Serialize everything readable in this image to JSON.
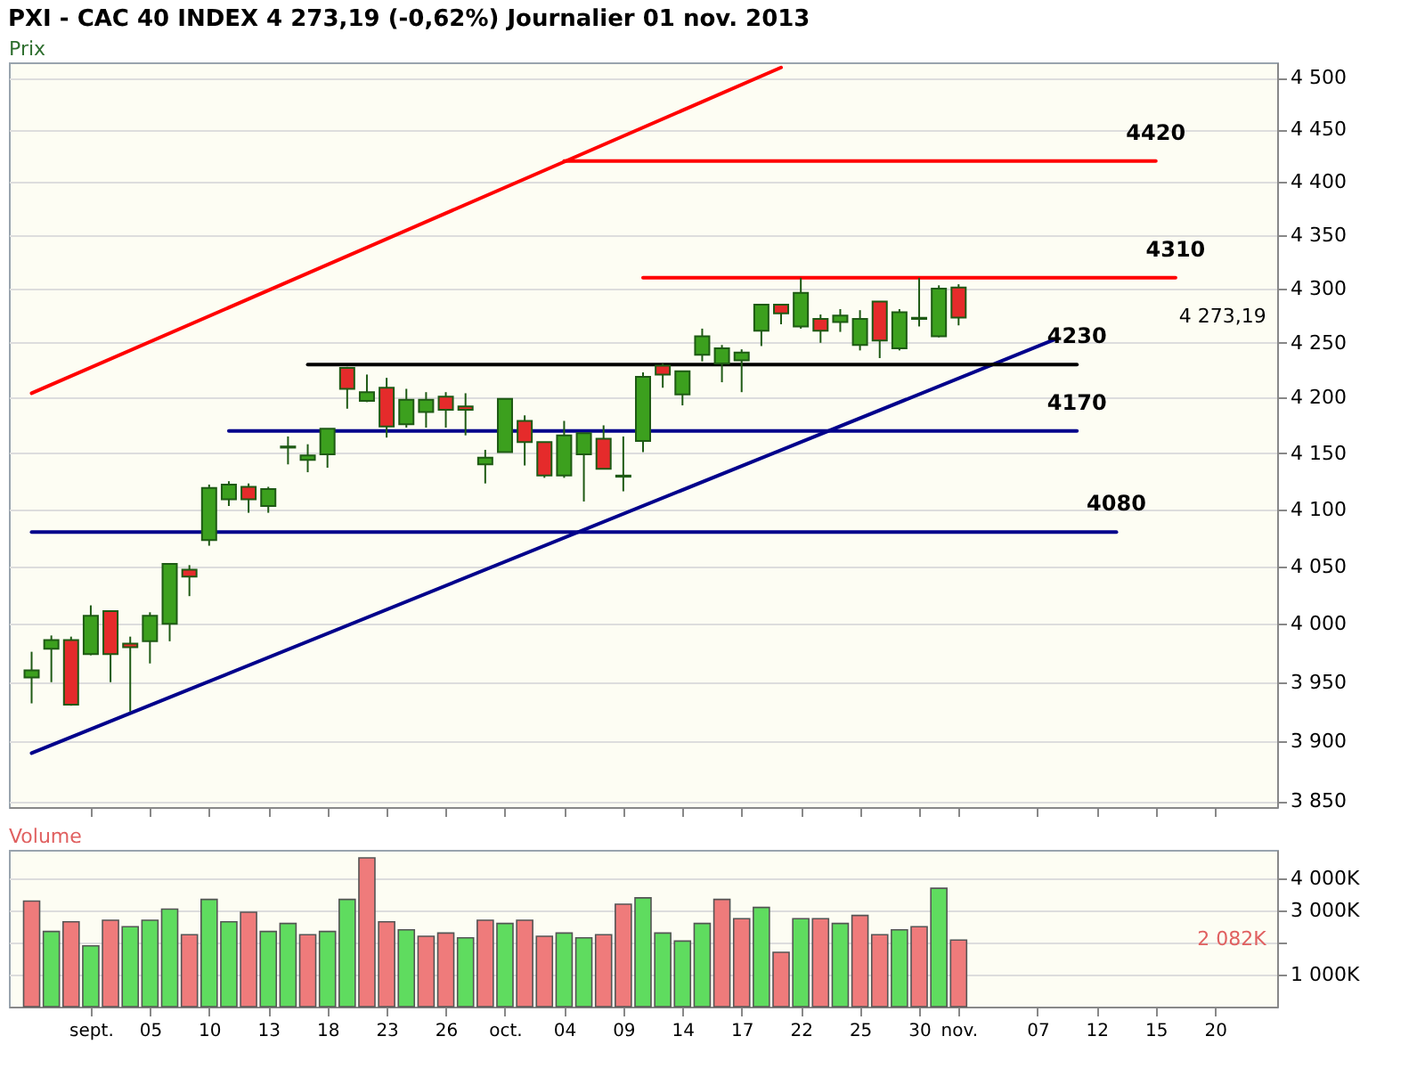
{
  "chart_data": [
    {
      "type": "candlestick",
      "title": "PXI - CAC 40 INDEX 4 273,19 (-0,62%) Journalier 01 nov. 2013",
      "ylabel": "Prix",
      "categories": [
        null,
        null,
        null,
        "sept.",
        null,
        null,
        "05",
        null,
        null,
        "10",
        null,
        null,
        "13",
        null,
        null,
        "18",
        null,
        null,
        "23",
        null,
        null,
        "26",
        null,
        null,
        "oct.",
        null,
        null,
        "04",
        null,
        null,
        "09",
        null,
        null,
        "14",
        null,
        null,
        "17",
        null,
        null,
        "22",
        null,
        null,
        "25",
        null,
        null,
        "30",
        null,
        "nov.",
        null,
        null,
        null,
        "07",
        null,
        null,
        "12",
        null,
        null,
        "15",
        null,
        null,
        "20",
        null,
        null
      ],
      "ohlc": [
        [
          3954,
          3976,
          3932,
          3960
        ],
        [
          3978.5,
          3990,
          3950,
          3986
        ],
        [
          3986,
          3989,
          3930,
          3931
        ],
        [
          3974,
          4016,
          3973,
          4007
        ],
        [
          4011,
          4011,
          3950,
          3974
        ],
        [
          3983,
          3989,
          3925,
          3980
        ],
        [
          3985,
          4010,
          3966,
          4007
        ],
        [
          4000,
          4052,
          3985,
          4052
        ],
        [
          4047,
          4051,
          4024,
          4041
        ],
        [
          4073,
          4122,
          4068,
          4119
        ],
        [
          4109,
          4125,
          4103,
          4122
        ],
        [
          4120,
          4123,
          4097,
          4109
        ],
        [
          4103,
          4120,
          4097,
          4118
        ],
        [
          4155,
          4165,
          4140,
          4156
        ],
        [
          4144,
          4158,
          4133,
          4148
        ],
        [
          4149,
          4172,
          4137,
          4172
        ],
        [
          4227,
          4228,
          4190,
          4208
        ],
        [
          4197,
          4221,
          4196,
          4205
        ],
        [
          4209,
          4218,
          4164,
          4174
        ],
        [
          4176,
          4208,
          4173,
          4198
        ],
        [
          4187,
          4205,
          4173,
          4198
        ],
        [
          4201,
          4205,
          4173,
          4189
        ],
        [
          4192,
          4204,
          4166,
          4189
        ],
        [
          4140,
          4153,
          4123,
          4146
        ],
        [
          4151,
          4199,
          4151,
          4199
        ],
        [
          4179,
          4184,
          4139,
          4160
        ],
        [
          4160,
          4160,
          4128,
          4130
        ],
        [
          4130,
          4179,
          4128,
          4166
        ],
        [
          4149,
          4168,
          4107,
          4168
        ],
        [
          4163,
          4175,
          4136,
          4136
        ],
        [
          4129,
          4165,
          4116,
          4130
        ],
        [
          4161,
          4223,
          4151,
          4219
        ],
        [
          4229,
          4231,
          4209,
          4221
        ],
        [
          4203,
          4224,
          4193,
          4224
        ],
        [
          4239,
          4263,
          4233,
          4256
        ],
        [
          4231,
          4248,
          4214,
          4245
        ],
        [
          4234,
          4244,
          4205,
          4241
        ],
        [
          4261,
          4285,
          4247,
          4285
        ],
        [
          4285,
          4285,
          4267,
          4277
        ],
        [
          4265,
          4310,
          4263,
          4296
        ],
        [
          4272,
          4276,
          4250,
          4261
        ],
        [
          4269,
          4281,
          4260,
          4275
        ],
        [
          4248,
          4280,
          4243,
          4272
        ],
        [
          4288,
          4288,
          4236,
          4252
        ],
        [
          4245,
          4281,
          4243,
          4278
        ],
        [
          4272,
          4310,
          4265,
          4273
        ],
        [
          4256,
          4303,
          4255,
          4300
        ],
        [
          4301,
          4304,
          4266,
          4273.19
        ],
        null,
        null,
        null,
        null,
        null,
        null,
        null,
        null,
        null,
        null,
        null,
        null,
        null,
        null,
        null
      ],
      "colors": [
        "#3ca01e",
        "#3ca01e",
        "#e52b2b",
        "#3ca01e",
        "#e52b2b",
        "#e52b2b",
        "#3ca01e",
        "#3ca01e",
        "#e52b2b",
        "#3ca01e",
        "#3ca01e",
        "#e52b2b",
        "#3ca01e",
        "#3ca01e",
        "#3ca01e",
        "#3ca01e",
        "#e52b2b",
        "#3ca01e",
        "#e52b2b",
        "#3ca01e",
        "#3ca01e",
        "#e52b2b",
        "#e52b2b",
        "#3ca01e",
        "#3ca01e",
        "#e52b2b",
        "#e52b2b",
        "#3ca01e",
        "#3ca01e",
        "#e52b2b",
        "#3ca01e",
        "#3ca01e",
        "#e52b2b",
        "#3ca01e",
        "#3ca01e",
        "#3ca01e",
        "#3ca01e",
        "#3ca01e",
        "#e52b2b",
        "#3ca01e",
        "#e52b2b",
        "#3ca01e",
        "#3ca01e",
        "#e52b2b",
        "#3ca01e",
        "#3ca01e",
        "#3ca01e",
        "#e52b2b",
        null,
        null,
        null,
        null,
        null,
        null,
        null,
        null,
        null,
        null,
        null,
        null,
        null,
        null,
        null
      ],
      "series": [
        {
          "type": "line",
          "color": "#ff0000",
          "values": [
            4204,
            null,
            null,
            null,
            null,
            null,
            null,
            null,
            null,
            null,
            null,
            null,
            null,
            null,
            null,
            null,
            null,
            null,
            null,
            null,
            null,
            null,
            null,
            null,
            null,
            null,
            null,
            null,
            null,
            null,
            null,
            null,
            null,
            null,
            null,
            null,
            null,
            null,
            4510,
            null,
            null,
            null,
            null,
            null,
            null,
            null,
            null,
            null,
            null,
            null,
            null,
            null,
            null,
            null,
            null,
            null,
            null,
            null,
            null,
            null,
            null,
            null,
            null
          ]
        },
        {
          "type": "line",
          "color": "#00008b",
          "values": [
            3890,
            null,
            null,
            null,
            null,
            null,
            null,
            null,
            null,
            null,
            null,
            null,
            null,
            null,
            null,
            null,
            null,
            null,
            null,
            null,
            null,
            null,
            null,
            null,
            null,
            null,
            null,
            null,
            null,
            null,
            null,
            null,
            null,
            null,
            null,
            null,
            null,
            null,
            null,
            null,
            null,
            null,
            null,
            null,
            null,
            null,
            null,
            null,
            null,
            null,
            null,
            null,
            4254,
            null,
            null,
            null,
            null,
            null,
            null,
            null,
            null,
            null,
            null
          ]
        },
        {
          "type": "line",
          "name": "4420",
          "color": "#ff0000",
          "values": [
            null,
            null,
            null,
            null,
            null,
            null,
            null,
            null,
            null,
            null,
            null,
            null,
            null,
            null,
            null,
            null,
            null,
            null,
            null,
            null,
            null,
            null,
            null,
            null,
            null,
            null,
            null,
            4420,
            null,
            null,
            null,
            null,
            null,
            null,
            null,
            null,
            null,
            null,
            null,
            null,
            null,
            null,
            null,
            null,
            null,
            null,
            null,
            null,
            null,
            null,
            null,
            null,
            null,
            null,
            null,
            null,
            null,
            4420,
            null,
            null,
            null,
            null,
            null
          ]
        },
        {
          "type": "line",
          "name": "4310",
          "color": "#ff0000",
          "values": [
            null,
            null,
            null,
            null,
            null,
            null,
            null,
            null,
            null,
            null,
            null,
            null,
            null,
            null,
            null,
            null,
            null,
            null,
            null,
            null,
            null,
            null,
            null,
            null,
            null,
            null,
            null,
            null,
            null,
            null,
            null,
            4310,
            null,
            null,
            null,
            null,
            null,
            null,
            null,
            null,
            null,
            null,
            null,
            null,
            null,
            null,
            null,
            null,
            null,
            null,
            null,
            null,
            null,
            null,
            null,
            null,
            null,
            null,
            4310,
            null,
            null,
            null,
            null
          ]
        },
        {
          "type": "line",
          "name": "4230",
          "color": "#000000",
          "values": [
            null,
            null,
            null,
            null,
            null,
            null,
            null,
            null,
            null,
            null,
            null,
            null,
            null,
            null,
            4230,
            null,
            null,
            null,
            null,
            null,
            null,
            null,
            null,
            null,
            null,
            null,
            null,
            null,
            null,
            null,
            null,
            null,
            null,
            null,
            null,
            null,
            null,
            null,
            null,
            null,
            null,
            null,
            null,
            null,
            null,
            null,
            null,
            null,
            null,
            null,
            null,
            null,
            null,
            4230,
            null,
            null,
            null,
            null,
            null,
            null,
            null,
            null,
            null
          ]
        },
        {
          "type": "line",
          "name": "4170",
          "color": "#00008b",
          "values": [
            null,
            null,
            null,
            null,
            null,
            null,
            null,
            null,
            null,
            null,
            4170,
            null,
            null,
            null,
            null,
            null,
            null,
            null,
            null,
            null,
            null,
            null,
            null,
            null,
            null,
            null,
            null,
            null,
            null,
            null,
            null,
            null,
            null,
            null,
            null,
            null,
            null,
            null,
            null,
            null,
            null,
            null,
            null,
            null,
            null,
            null,
            null,
            null,
            null,
            null,
            null,
            null,
            null,
            4170,
            null,
            null,
            null,
            null,
            null,
            null,
            null,
            null,
            null
          ]
        },
        {
          "type": "line",
          "name": "4080",
          "color": "#00008b",
          "values": [
            4080,
            null,
            null,
            null,
            null,
            null,
            null,
            null,
            null,
            null,
            null,
            null,
            null,
            null,
            null,
            null,
            null,
            null,
            null,
            null,
            null,
            null,
            null,
            null,
            null,
            null,
            null,
            null,
            null,
            null,
            null,
            null,
            null,
            null,
            null,
            null,
            null,
            null,
            null,
            null,
            null,
            null,
            null,
            null,
            null,
            null,
            null,
            null,
            null,
            null,
            null,
            null,
            null,
            null,
            null,
            4080,
            null,
            null,
            null,
            null,
            null,
            null,
            null
          ]
        }
      ],
      "log": true,
      "ylim": [
        3845,
        4515
      ],
      "yticks": [
        {
          "value": 3850,
          "label": "3 850"
        },
        {
          "value": 3900,
          "label": "3 900"
        },
        {
          "value": 3950,
          "label": "3 950"
        },
        {
          "value": 4000,
          "label": "4 000"
        },
        {
          "value": 4050,
          "label": "4 050"
        },
        {
          "value": 4100,
          "label": "4 100"
        },
        {
          "value": 4150,
          "label": "4 150"
        },
        {
          "value": 4200,
          "label": "4 200"
        },
        {
          "value": 4250,
          "label": "4 250"
        },
        {
          "value": 4300,
          "label": "4 300"
        },
        {
          "value": 4350,
          "label": "4 350"
        },
        {
          "value": 4400,
          "label": "4 400"
        },
        {
          "value": 4450,
          "label": "4 450"
        },
        {
          "value": 4500,
          "label": "4 500"
        }
      ],
      "grid": "y",
      "tick_labels": "y",
      "annotations": [
        "4 273,19"
      ]
    },
    {
      "type": "bar",
      "ylabel": "Volume",
      "categories": [
        null,
        null,
        null,
        "sept.",
        null,
        null,
        "05",
        null,
        null,
        "10",
        null,
        null,
        "13",
        null,
        null,
        "18",
        null,
        null,
        "23",
        null,
        null,
        "26",
        null,
        null,
        "oct.",
        null,
        null,
        "04",
        null,
        null,
        "09",
        null,
        null,
        "14",
        null,
        null,
        "17",
        null,
        null,
        "22",
        null,
        null,
        "25",
        null,
        null,
        "30",
        null,
        "nov.",
        null,
        null,
        null,
        "07",
        null,
        null,
        "12",
        null,
        null,
        "15",
        null,
        null,
        "20",
        null,
        null
      ],
      "values": [
        3300,
        2350,
        2650,
        1900,
        2700,
        2500,
        2700,
        3050,
        2250,
        3350,
        2650,
        2950,
        2350,
        2600,
        2250,
        2350,
        3350,
        4650,
        2650,
        2400,
        2200,
        2300,
        2150,
        2700,
        2600,
        2700,
        2200,
        2300,
        2150,
        2250,
        3200,
        3400,
        2300,
        2050,
        2600,
        3350,
        2750,
        3100,
        1700,
        2750,
        2750,
        2600,
        2850,
        2250,
        2400,
        2500,
        3700,
        2082,
        null,
        null,
        null,
        null,
        null,
        null,
        null,
        null,
        null,
        null,
        null,
        null,
        null,
        null,
        null
      ],
      "colors": [
        "#ef7b7b",
        "#5fdc5f",
        "#ef7b7b",
        "#5fdc5f",
        "#ef7b7b",
        "#5fdc5f",
        "#5fdc5f",
        "#5fdc5f",
        "#ef7b7b",
        "#5fdc5f",
        "#5fdc5f",
        "#ef7b7b",
        "#5fdc5f",
        "#5fdc5f",
        "#ef7b7b",
        "#5fdc5f",
        "#5fdc5f",
        "#ef7b7b",
        "#ef7b7b",
        "#5fdc5f",
        "#ef7b7b",
        "#ef7b7b",
        "#5fdc5f",
        "#ef7b7b",
        "#5fdc5f",
        "#ef7b7b",
        "#ef7b7b",
        "#5fdc5f",
        "#5fdc5f",
        "#ef7b7b",
        "#ef7b7b",
        "#5fdc5f",
        "#5fdc5f",
        "#5fdc5f",
        "#5fdc5f",
        "#ef7b7b",
        "#ef7b7b",
        "#5fdc5f",
        "#ef7b7b",
        "#5fdc5f",
        "#ef7b7b",
        "#5fdc5f",
        "#ef7b7b",
        "#ef7b7b",
        "#5fdc5f",
        "#ef7b7b",
        "#5fdc5f",
        "#ef7b7b",
        null,
        null,
        null,
        null,
        null,
        null,
        null,
        null,
        null,
        null,
        null,
        null,
        null,
        null,
        null
      ],
      "ylim": [
        0,
        4900
      ],
      "yticks": [
        {
          "value": 1000,
          "label": "1 000K"
        },
        {
          "value": 2000,
          "label": null
        },
        {
          "value": 3000,
          "label": "3 000K"
        },
        {
          "value": 4000,
          "label": "4 000K"
        }
      ],
      "grid": "y",
      "annotations": [
        "2 082K"
      ]
    }
  ]
}
